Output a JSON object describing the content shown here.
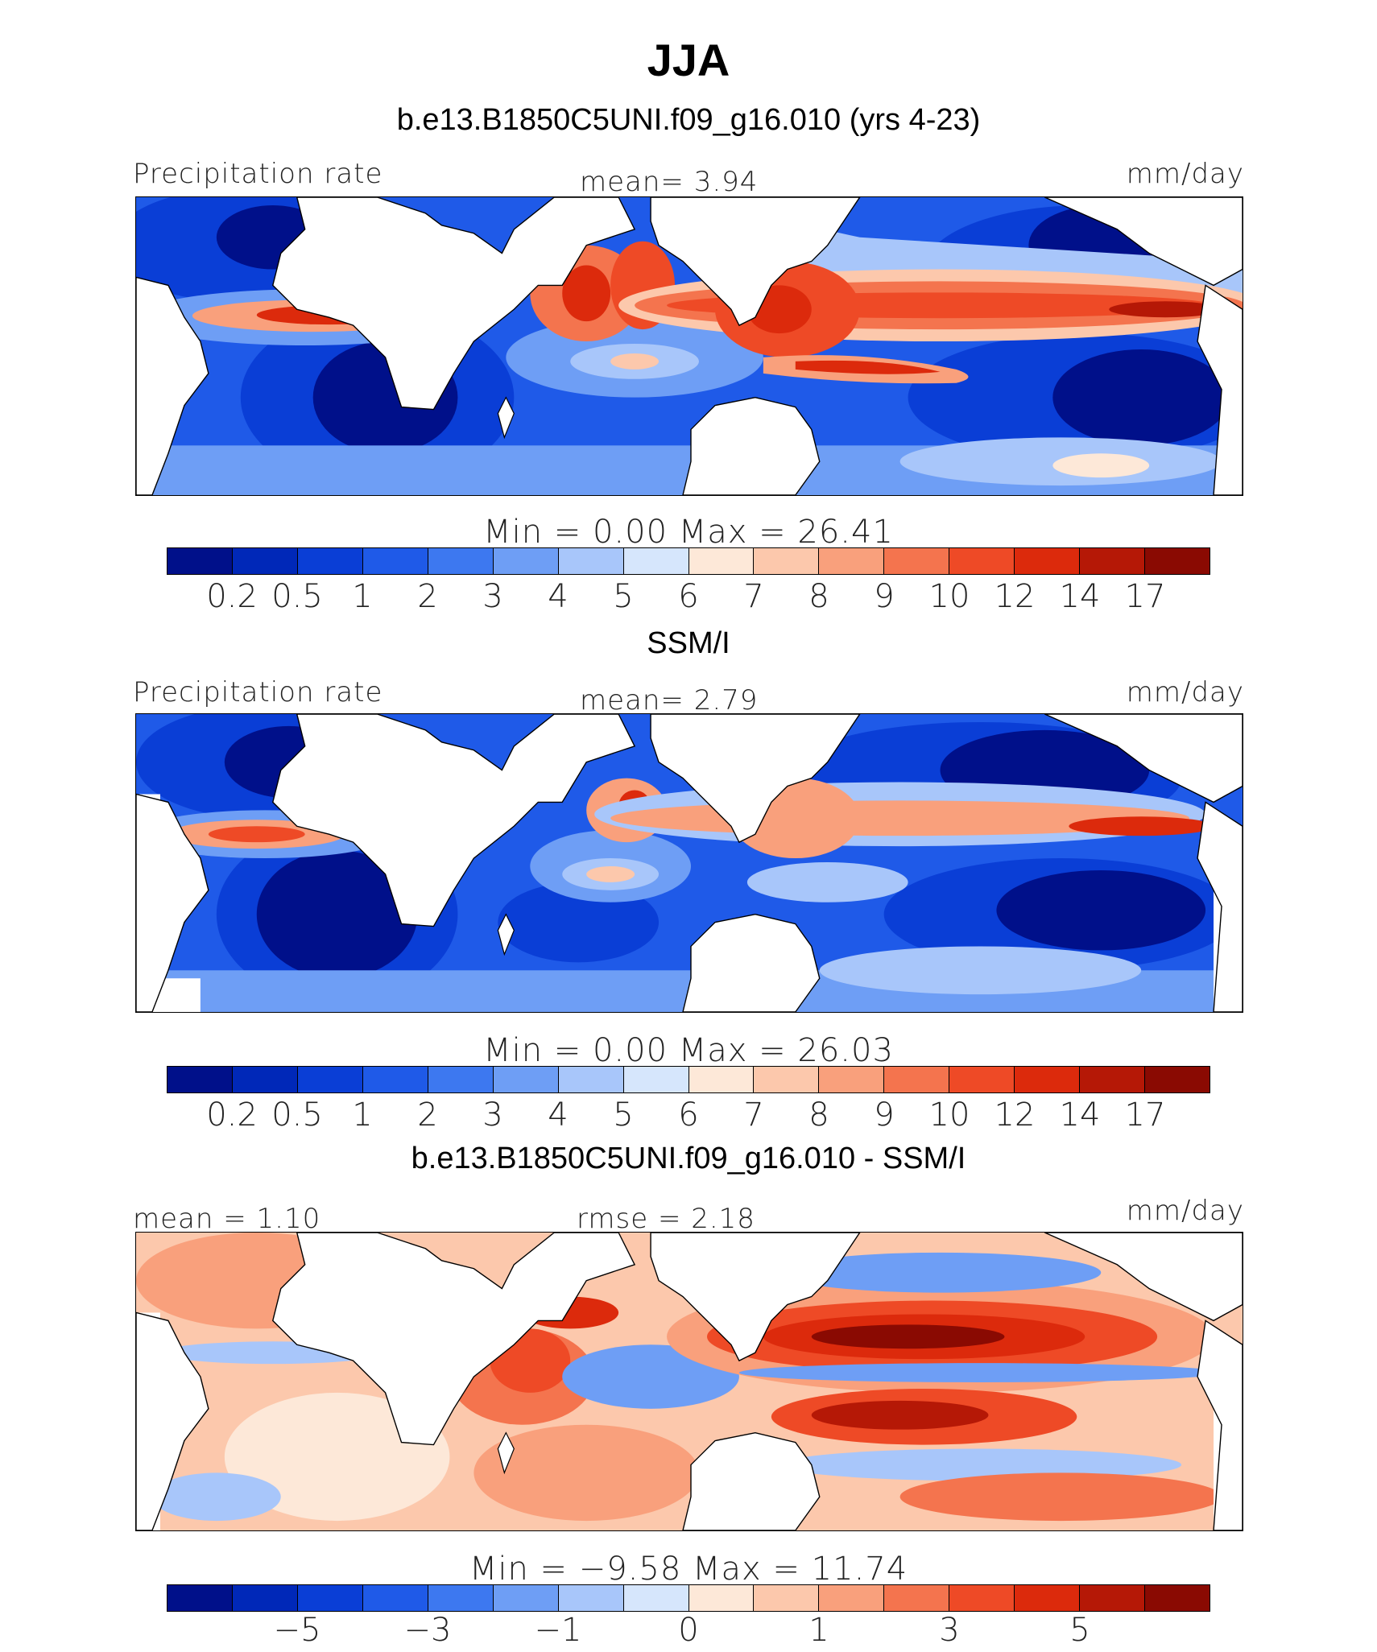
{
  "figure": {
    "title": "JJA"
  },
  "panels": [
    {
      "title": "b.e13.B1850C5UNI.f09_g16.010 (yrs 4-23)",
      "left_label": "Precipitation rate",
      "center_label": "mean=   3.94",
      "right_label": "mm/day",
      "stats": "Min =    0.00 Max =   26.41",
      "colors": [
        "#00108a",
        "#0028b8",
        "#0a3ed6",
        "#1f5ae8",
        "#3d78f0",
        "#6e9ef5",
        "#a8c6fa",
        "#d6e6fc",
        "#fde8d8",
        "#fcc8ac",
        "#f9a07c",
        "#f4744e",
        "#ee4a26",
        "#dc2a0c",
        "#b51806",
        "#8a0a02"
      ],
      "tick_labels": [
        "0.2",
        "0.5",
        "1",
        "2",
        "3",
        "4",
        "5",
        "6",
        "7",
        "8",
        "9",
        "10",
        "12",
        "14",
        "17"
      ],
      "tick_positions": [
        1,
        2,
        3,
        4,
        5,
        6,
        7,
        8,
        9,
        10,
        11,
        12,
        13,
        14,
        15
      ]
    },
    {
      "title": "SSM/I",
      "left_label": "Precipitation rate",
      "center_label": "mean=   2.79",
      "right_label": "mm/day",
      "stats": "Min =    0.00 Max =   26.03",
      "colors": [
        "#00108a",
        "#0028b8",
        "#0a3ed6",
        "#1f5ae8",
        "#3d78f0",
        "#6e9ef5",
        "#a8c6fa",
        "#d6e6fc",
        "#fde8d8",
        "#fcc8ac",
        "#f9a07c",
        "#f4744e",
        "#ee4a26",
        "#dc2a0c",
        "#b51806",
        "#8a0a02"
      ],
      "tick_labels": [
        "0.2",
        "0.5",
        "1",
        "2",
        "3",
        "4",
        "5",
        "6",
        "7",
        "8",
        "9",
        "10",
        "12",
        "14",
        "17"
      ],
      "tick_positions": [
        1,
        2,
        3,
        4,
        5,
        6,
        7,
        8,
        9,
        10,
        11,
        12,
        13,
        14,
        15
      ]
    },
    {
      "title": "b.e13.B1850C5UNI.f09_g16.010 - SSM/I",
      "left_label": "mean =   1.10",
      "center_label": "rmse =   2.18",
      "right_label": "mm/day",
      "stats": "Min =  −9.58 Max =   11.74",
      "colors": [
        "#00108a",
        "#0028b8",
        "#0a3ed6",
        "#1f5ae8",
        "#3d78f0",
        "#6e9ef5",
        "#a8c6fa",
        "#d6e6fc",
        "#fde8d8",
        "#fcc8ac",
        "#f9a07c",
        "#f4744e",
        "#ee4a26",
        "#dc2a0c",
        "#b51806",
        "#8a0a02"
      ],
      "tick_labels": [
        "−5",
        "−3",
        "−1",
        "0",
        "1",
        "3",
        "5"
      ],
      "tick_positions": [
        2,
        4,
        6,
        8,
        10,
        12,
        14
      ]
    }
  ]
}
